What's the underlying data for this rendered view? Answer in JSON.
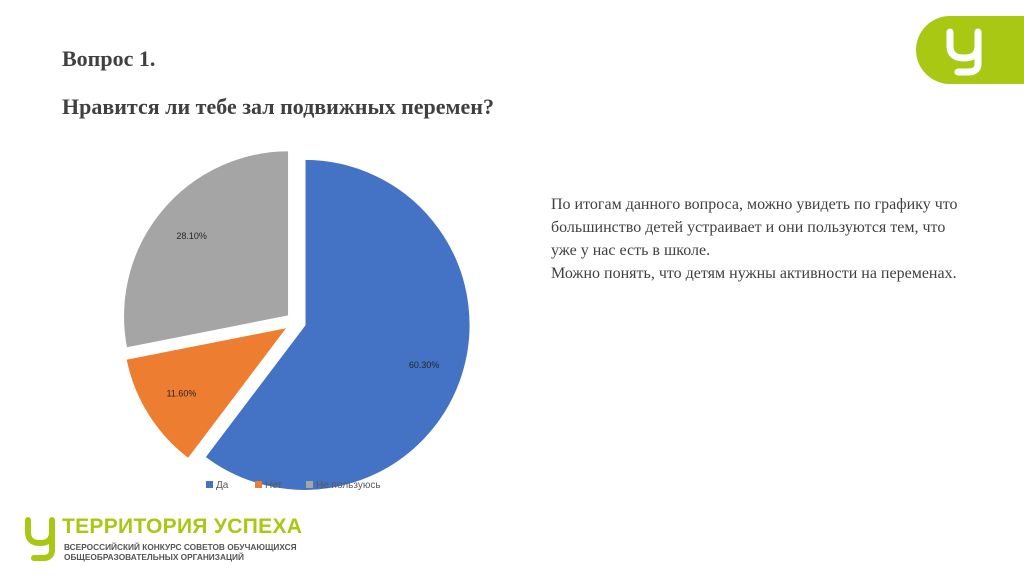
{
  "header": {
    "question_number": "Вопрос 1.",
    "question_text": "Нравится ли тебе зал подвижных перемен?"
  },
  "summary": {
    "line1": "По итогам данного вопроса, можно увидеть по графику что большинство детей устраивает и они пользуются тем, что уже у нас есть в школе.",
    "line2": "Можно понять, что детям нужны активности на переменах."
  },
  "chart_data": {
    "type": "pie",
    "categories": [
      "Да",
      "Нет",
      "Не пользуюсь"
    ],
    "values": [
      60.3,
      11.6,
      28.1
    ],
    "labels": [
      "60.30%",
      "11.60%",
      "28.10%"
    ],
    "colors": [
      "#4472c4",
      "#ed7d31",
      "#a5a5a5"
    ],
    "legend_position": "bottom"
  },
  "brand": {
    "accent_color": "#a8c814",
    "footer_title": "ТЕРРИТОРИЯ УСПЕХА",
    "footer_subtitle_line1": "ВСЕРОССИЙСКИЙ КОНКУРС СОВЕТОВ ОБУЧАЮЩИХСЯ",
    "footer_subtitle_line2": "ОБЩЕОБРАЗОВАТЕЛЬНЫХ ОРГАНИЗАЦИЙ"
  }
}
